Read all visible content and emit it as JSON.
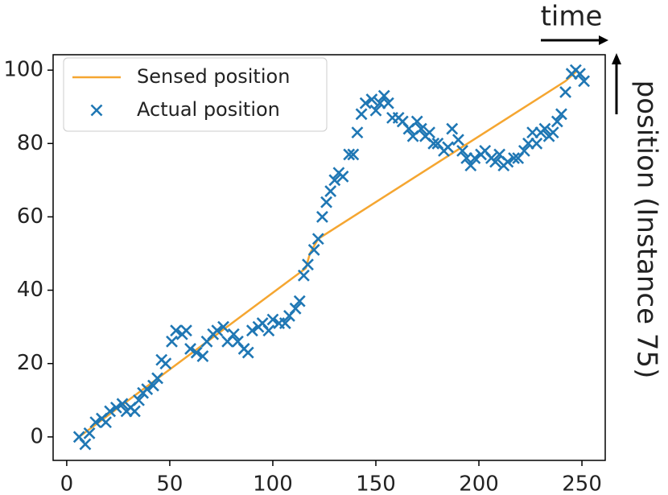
{
  "chart_data": {
    "type": "scatter",
    "xlabel": "time",
    "ylabel": "position (Instance 75)",
    "xlim": [
      -6.6,
      261.3
    ],
    "ylim": [
      -6.4,
      104.2
    ],
    "xticks": [
      0,
      50,
      100,
      150,
      200,
      250
    ],
    "yticks": [
      0,
      20,
      40,
      60,
      80,
      100
    ],
    "legend": "upper left",
    "series": [
      {
        "name": "Sensed position",
        "color": "#f5a631",
        "style": "line",
        "x": [
          6,
          116,
          118,
          122,
          242,
          248
        ],
        "values": [
          0,
          46,
          50,
          54,
          97,
          100
        ]
      },
      {
        "name": "Actual position",
        "color": "#1f77b4",
        "style": "x",
        "x": [
          6,
          9,
          11,
          14,
          17,
          19,
          21,
          24,
          27,
          29,
          31,
          33,
          35,
          37,
          39,
          42,
          44,
          46,
          48,
          51,
          53,
          56,
          58,
          60,
          63,
          66,
          68,
          71,
          73,
          76,
          78,
          81,
          83,
          86,
          88,
          90,
          93,
          95,
          98,
          100,
          103,
          106,
          108,
          111,
          113,
          115,
          117,
          120,
          122,
          124,
          126,
          128,
          130,
          132,
          134,
          137,
          139,
          141,
          143,
          145,
          148,
          150,
          152,
          154,
          156,
          158,
          161,
          163,
          166,
          168,
          170,
          172,
          174,
          176,
          178,
          180,
          183,
          185,
          187,
          190,
          192,
          194,
          196,
          198,
          201,
          203,
          206,
          208,
          210,
          212,
          214,
          217,
          219,
          222,
          224,
          226,
          228,
          230,
          232,
          234,
          236,
          238,
          240,
          242,
          245,
          247,
          249,
          251
        ],
        "values": [
          0,
          -2,
          1,
          4,
          5,
          4,
          7,
          8,
          9,
          7,
          8,
          7,
          10,
          12,
          13,
          14,
          16,
          21,
          20,
          26,
          29,
          28,
          29,
          24,
          23,
          22,
          26,
          28,
          29,
          30,
          26,
          28,
          26,
          24,
          23,
          29,
          30,
          31,
          29,
          32,
          31,
          31,
          33,
          35,
          37,
          44,
          47,
          51,
          54,
          60,
          64,
          67,
          70,
          72,
          71,
          77,
          77,
          83,
          88,
          91,
          92,
          89,
          91,
          93,
          91,
          87,
          87,
          86,
          84,
          82,
          86,
          84,
          82,
          83,
          80,
          80,
          78,
          79,
          84,
          81,
          78,
          76,
          74,
          76,
          77,
          78,
          76,
          75,
          77,
          74,
          75,
          76,
          76,
          78,
          80,
          83,
          80,
          83,
          84,
          82,
          83,
          86,
          88,
          94,
          99,
          100,
          99,
          97
        ]
      }
    ]
  }
}
